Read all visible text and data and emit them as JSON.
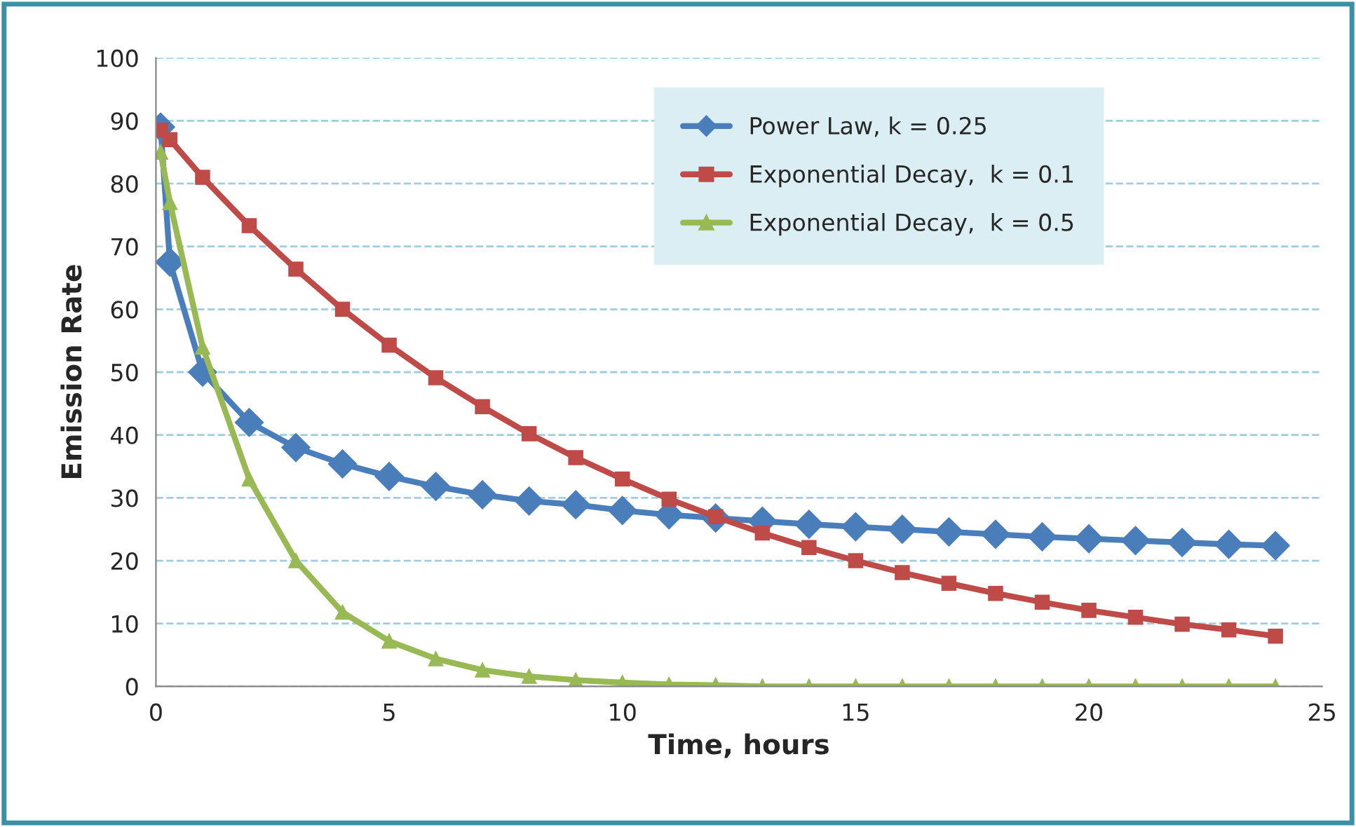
{
  "chart_data": {
    "type": "line",
    "xlabel": "Time, hours",
    "ylabel": "Emission Rate",
    "xlim": [
      0,
      25
    ],
    "xticks": [
      0,
      5,
      10,
      15,
      20,
      25
    ],
    "ylim": [
      0,
      100
    ],
    "yticks": [
      0,
      10,
      20,
      30,
      40,
      50,
      60,
      70,
      80,
      90,
      100
    ],
    "grid": "y",
    "legend": "top",
    "line_style": "solid",
    "series": [
      {
        "name": "Power Law, k = 0.25",
        "color": "#4a7ebb",
        "marker": "diamond",
        "x": [
          0.1,
          0.3,
          1,
          2,
          3,
          4,
          5,
          6,
          7,
          8,
          9,
          10,
          11,
          12,
          13,
          14,
          15,
          16,
          17,
          18,
          19,
          20,
          21,
          22,
          23,
          24
        ],
        "values": [
          89,
          67.5,
          50,
          42,
          38,
          35.4,
          33.4,
          31.8,
          30.5,
          29.5,
          28.9,
          28,
          27.3,
          26.8,
          26.3,
          25.8,
          25.4,
          25,
          24.6,
          24.2,
          23.8,
          23.5,
          23.2,
          22.9,
          22.6,
          22.4
        ]
      },
      {
        "name": "Exponential Decay,  k = 0.1",
        "color": "#be4b48",
        "marker": "square",
        "x": [
          0.1,
          0.3,
          1,
          2,
          3,
          4,
          5,
          6,
          7,
          8,
          9,
          10,
          11,
          12,
          13,
          14,
          15,
          16,
          17,
          18,
          19,
          20,
          21,
          22,
          23,
          24
        ],
        "values": [
          88.5,
          87,
          81,
          73.3,
          66.4,
          60,
          54.3,
          49.1,
          44.5,
          40.2,
          36.4,
          33,
          29.8,
          27,
          24.4,
          22.1,
          20,
          18.1,
          16.4,
          14.8,
          13.4,
          12.1,
          11,
          9.9,
          9,
          8
        ]
      },
      {
        "name": "Exponential Decay,  k = 0.5",
        "color": "#98b954",
        "marker": "triangle",
        "x": [
          0.1,
          0.3,
          1,
          2,
          3,
          4,
          5,
          6,
          7,
          8,
          9,
          10,
          11,
          12,
          13,
          14,
          15,
          16,
          17,
          18,
          19,
          20,
          21,
          22,
          23,
          24
        ],
        "values": [
          85,
          77,
          54,
          33,
          20,
          11.8,
          7.2,
          4.4,
          2.6,
          1.6,
          1,
          0.6,
          0.3,
          0.2,
          0,
          0,
          0,
          0,
          0,
          0,
          0,
          0,
          0,
          0,
          0,
          0
        ]
      }
    ]
  }
}
